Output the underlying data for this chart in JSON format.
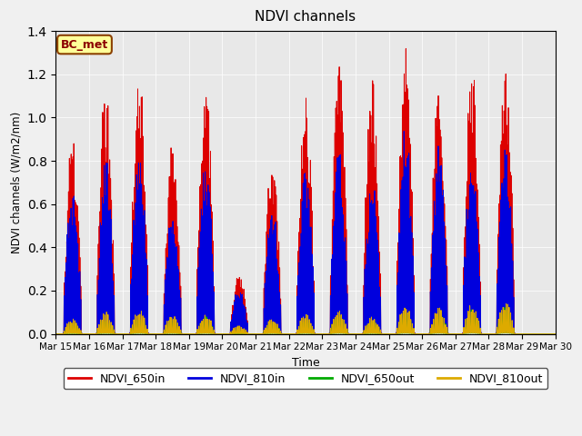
{
  "title": "NDVI channels",
  "ylabel": "NDVI channels (W/m2/nm)",
  "xlabel": "Time",
  "annotation": "BC_met",
  "ylim": [
    0,
    1.4
  ],
  "legend_labels": [
    "NDVI_650in",
    "NDVI_810in",
    "NDVI_650out",
    "NDVI_810out"
  ],
  "line_colors": {
    "NDVI_650in": "#dd0000",
    "NDVI_810in": "#0000dd",
    "NDVI_650out": "#00aa00",
    "NDVI_810out": "#ddaa00"
  },
  "background_color": "#f0f0f0",
  "axes_bg": "#e8e8e8",
  "xtick_labels": [
    "Mar 15",
    "Mar 16",
    "Mar 17",
    "Mar 18",
    "Mar 19",
    "Mar 20",
    "Mar 21",
    "Mar 22",
    "Mar 23",
    "Mar 24",
    "Mar 25",
    "Mar 26",
    "Mar 27",
    "Mar 28",
    "Mar 29",
    "Mar 30"
  ],
  "day_envelope_650in": [
    0.9,
    1.13,
    1.23,
    0.86,
    1.16,
    0.28,
    0.84,
    1.1,
    1.24,
    1.22,
    1.35,
    1.22,
    1.24,
    1.26,
    0.0
  ],
  "day_envelope_810in": [
    0.7,
    0.8,
    0.87,
    0.63,
    0.83,
    0.21,
    0.6,
    0.77,
    0.88,
    0.73,
    0.96,
    0.86,
    0.86,
    0.87,
    0.0
  ],
  "day_envelope_650out": [
    0.05,
    0.07,
    0.08,
    0.07,
    0.08,
    0.02,
    0.06,
    0.07,
    0.09,
    0.06,
    0.1,
    0.1,
    0.11,
    0.12,
    0.0
  ],
  "day_envelope_810out": [
    0.07,
    0.1,
    0.11,
    0.09,
    0.09,
    0.04,
    0.07,
    0.09,
    0.11,
    0.08,
    0.13,
    0.12,
    0.14,
    0.15,
    0.0
  ],
  "figsize": [
    6.4,
    4.8
  ],
  "dpi": 100
}
